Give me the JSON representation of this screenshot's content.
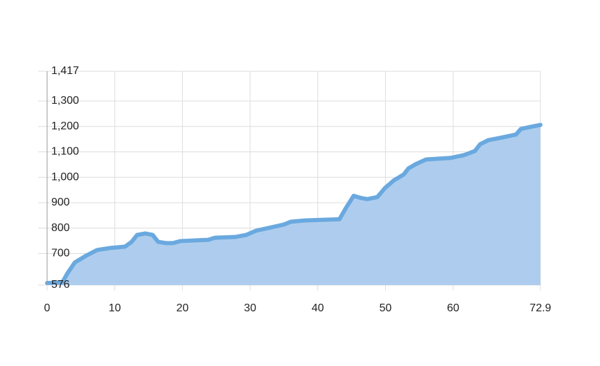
{
  "chart_data": {
    "type": "area",
    "x": [
      0,
      2.25,
      3,
      4.1,
      5.8,
      7.4,
      9.4,
      11.5,
      12.5,
      13.3,
      14.5,
      15.6,
      16.4,
      17.6,
      18.6,
      19.7,
      23.8,
      24.8,
      27.8,
      29.4,
      30.9,
      35,
      36,
      38.1,
      43.2,
      44.2,
      45.3,
      46.3,
      47.3,
      48.8,
      49.9,
      51.2,
      52.7,
      53.4,
      54.5,
      56,
      59.6,
      61.6,
      63.2,
      64,
      65.2,
      66.8,
      69.3,
      70,
      71.4,
      72.9
    ],
    "values": [
      584,
      587,
      622,
      665,
      692,
      714,
      722,
      727,
      746,
      773,
      779,
      773,
      746,
      741,
      741,
      749,
      754,
      762,
      765,
      773,
      790,
      814,
      825,
      830,
      835,
      881,
      927,
      919,
      914,
      922,
      957,
      987,
      1011,
      1035,
      1052,
      1070,
      1076,
      1087,
      1103,
      1130,
      1146,
      1154,
      1168,
      1190,
      1198,
      1206
    ],
    "color": "#6aa9df",
    "fill": "#aecdee",
    "xlim": [
      0,
      72.9
    ],
    "xticks": [
      0,
      10,
      20,
      30,
      40,
      50,
      60,
      72.9
    ],
    "ylim": [
      576,
      1417
    ],
    "yticks": [
      576,
      700,
      800,
      900,
      {
        "value": 1000,
        "label": "1,000"
      },
      {
        "value": 1100,
        "label": "1,100"
      },
      {
        "value": 1200,
        "label": "1,200"
      },
      {
        "value": 1300,
        "label": "1,300"
      },
      {
        "value": 1417,
        "label": "1,417"
      }
    ],
    "grid": true
  }
}
